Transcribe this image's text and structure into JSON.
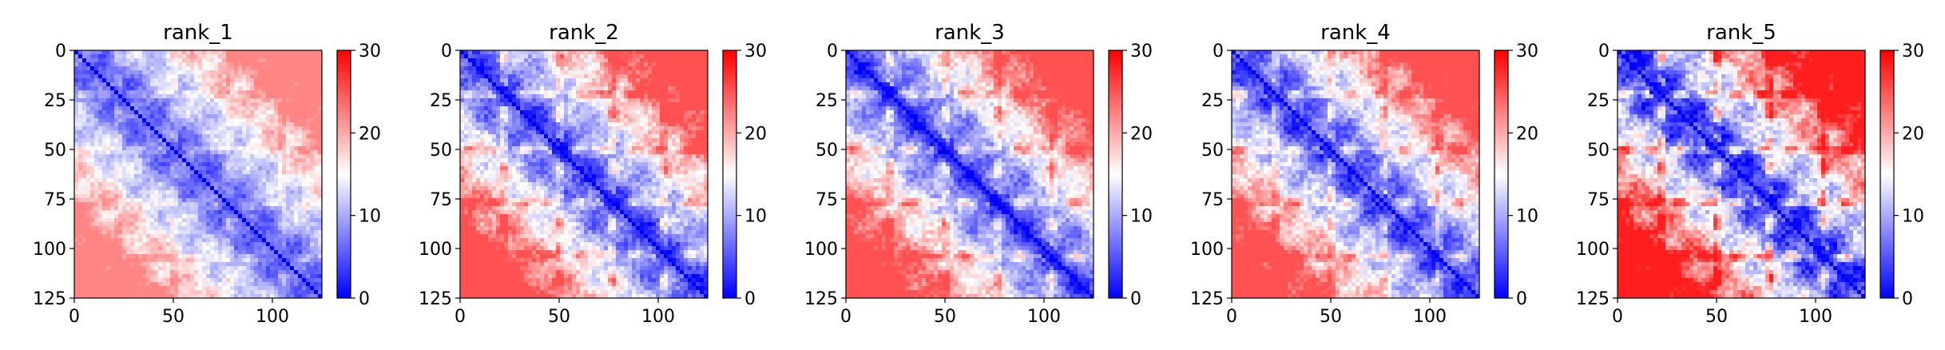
{
  "chart_data": [
    {
      "type": "heatmap",
      "title": "rank_1",
      "x_ticks": [
        0,
        50,
        100
      ],
      "y_ticks": [
        0,
        25,
        50,
        75,
        100,
        125
      ],
      "xlim": [
        0,
        125
      ],
      "ylim": [
        125,
        0
      ],
      "colorbar": {
        "ticks": [
          0,
          10,
          20,
          30
        ],
        "range": [
          0,
          30
        ],
        "colors": [
          "#0000ff",
          "#ffffff",
          "#ff0000"
        ]
      },
      "bands": [
        22,
        50,
        78,
        105
      ],
      "band_strength": 0.55,
      "contrast": 0.75
    },
    {
      "type": "heatmap",
      "title": "rank_2",
      "x_ticks": [
        0,
        50,
        100
      ],
      "y_ticks": [
        0,
        25,
        50,
        75,
        100,
        125
      ],
      "xlim": [
        0,
        125
      ],
      "ylim": [
        125,
        0
      ],
      "colorbar": {
        "ticks": [
          0,
          10,
          20,
          30
        ],
        "range": [
          0,
          30
        ],
        "colors": [
          "#0000ff",
          "#ffffff",
          "#ff0000"
        ]
      },
      "bands": [
        22,
        50,
        77,
        103
      ],
      "band_strength": 0.85,
      "contrast": 0.95
    },
    {
      "type": "heatmap",
      "title": "rank_3",
      "x_ticks": [
        0,
        50,
        100
      ],
      "y_ticks": [
        0,
        25,
        50,
        75,
        100,
        125
      ],
      "xlim": [
        0,
        125
      ],
      "ylim": [
        125,
        0
      ],
      "colorbar": {
        "ticks": [
          0,
          10,
          20,
          30
        ],
        "range": [
          0,
          30
        ],
        "colors": [
          "#0000ff",
          "#ffffff",
          "#ff0000"
        ]
      },
      "bands": [
        22,
        50,
        77,
        104
      ],
      "band_strength": 0.8,
      "contrast": 0.95
    },
    {
      "type": "heatmap",
      "title": "rank_4",
      "x_ticks": [
        0,
        50,
        100
      ],
      "y_ticks": [
        0,
        25,
        50,
        75,
        100,
        125
      ],
      "xlim": [
        0,
        125
      ],
      "ylim": [
        125,
        0
      ],
      "colorbar": {
        "ticks": [
          0,
          10,
          20,
          30
        ],
        "range": [
          0,
          30
        ],
        "colors": [
          "#0000ff",
          "#ffffff",
          "#ff0000"
        ]
      },
      "bands": [
        22,
        50,
        77,
        104
      ],
      "band_strength": 0.8,
      "contrast": 0.95
    },
    {
      "type": "heatmap",
      "title": "rank_5",
      "x_ticks": [
        0,
        50,
        100
      ],
      "y_ticks": [
        0,
        25,
        50,
        75,
        100,
        125
      ],
      "xlim": [
        0,
        125
      ],
      "ylim": [
        125,
        0
      ],
      "colorbar": {
        "ticks": [
          0,
          10,
          20,
          30
        ],
        "range": [
          0,
          30
        ],
        "colors": [
          "#0000ff",
          "#ffffff",
          "#ff0000"
        ]
      },
      "bands": [
        22,
        50,
        77,
        104
      ],
      "band_strength": 1.1,
      "contrast": 1.15
    }
  ]
}
